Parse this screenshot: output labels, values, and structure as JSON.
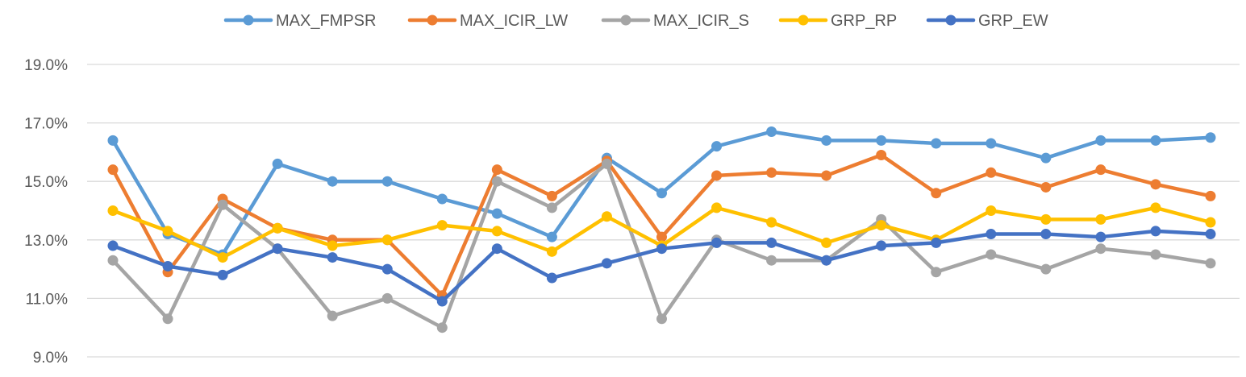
{
  "chart_data": {
    "type": "line",
    "title": "",
    "xlabel": "",
    "ylabel": "",
    "ylim": [
      9.0,
      19.0
    ],
    "yticks": [
      "9.0%",
      "11.0%",
      "13.0%",
      "15.0%",
      "17.0%",
      "19.0%"
    ],
    "ytick_values": [
      9,
      11,
      13,
      15,
      17,
      19
    ],
    "n_points": 21,
    "grid": "horizontal",
    "legend_position": "top-center",
    "series": [
      {
        "name": "MAX_FMPSR",
        "color": "#5B9BD5",
        "values": [
          16.4,
          13.2,
          12.5,
          15.6,
          15.0,
          15.0,
          14.4,
          13.9,
          13.1,
          15.8,
          14.6,
          16.2,
          16.7,
          16.4,
          16.4,
          16.3,
          16.3,
          15.8,
          16.4,
          16.4,
          16.5
        ]
      },
      {
        "name": "MAX_ICIR_LW",
        "color": "#ED7D31",
        "values": [
          15.4,
          11.9,
          14.4,
          13.4,
          13.0,
          13.0,
          11.1,
          15.4,
          14.5,
          15.7,
          13.1,
          15.2,
          15.3,
          15.2,
          15.9,
          14.6,
          15.3,
          14.8,
          15.4,
          14.9,
          14.5
        ]
      },
      {
        "name": "MAX_ICIR_S",
        "color": "#A5A5A5",
        "values": [
          12.3,
          10.3,
          14.2,
          12.7,
          10.4,
          11.0,
          10.0,
          15.0,
          14.1,
          15.6,
          10.3,
          13.0,
          12.3,
          12.3,
          13.7,
          11.9,
          12.5,
          12.0,
          12.7,
          12.5,
          12.2
        ]
      },
      {
        "name": "GRP_RP",
        "color": "#FFC000",
        "values": [
          14.0,
          13.3,
          12.4,
          13.4,
          12.8,
          13.0,
          13.5,
          13.3,
          12.6,
          13.8,
          12.8,
          14.1,
          13.6,
          12.9,
          13.5,
          13.0,
          14.0,
          13.7,
          13.7,
          14.1,
          13.6
        ]
      },
      {
        "name": "GRP_EW",
        "color": "#4472C4",
        "values": [
          12.8,
          12.1,
          11.8,
          12.7,
          12.4,
          12.0,
          10.9,
          12.7,
          11.7,
          12.2,
          12.7,
          12.9,
          12.9,
          12.3,
          12.8,
          12.9,
          13.2,
          13.2,
          13.1,
          13.3,
          13.2
        ]
      }
    ]
  }
}
